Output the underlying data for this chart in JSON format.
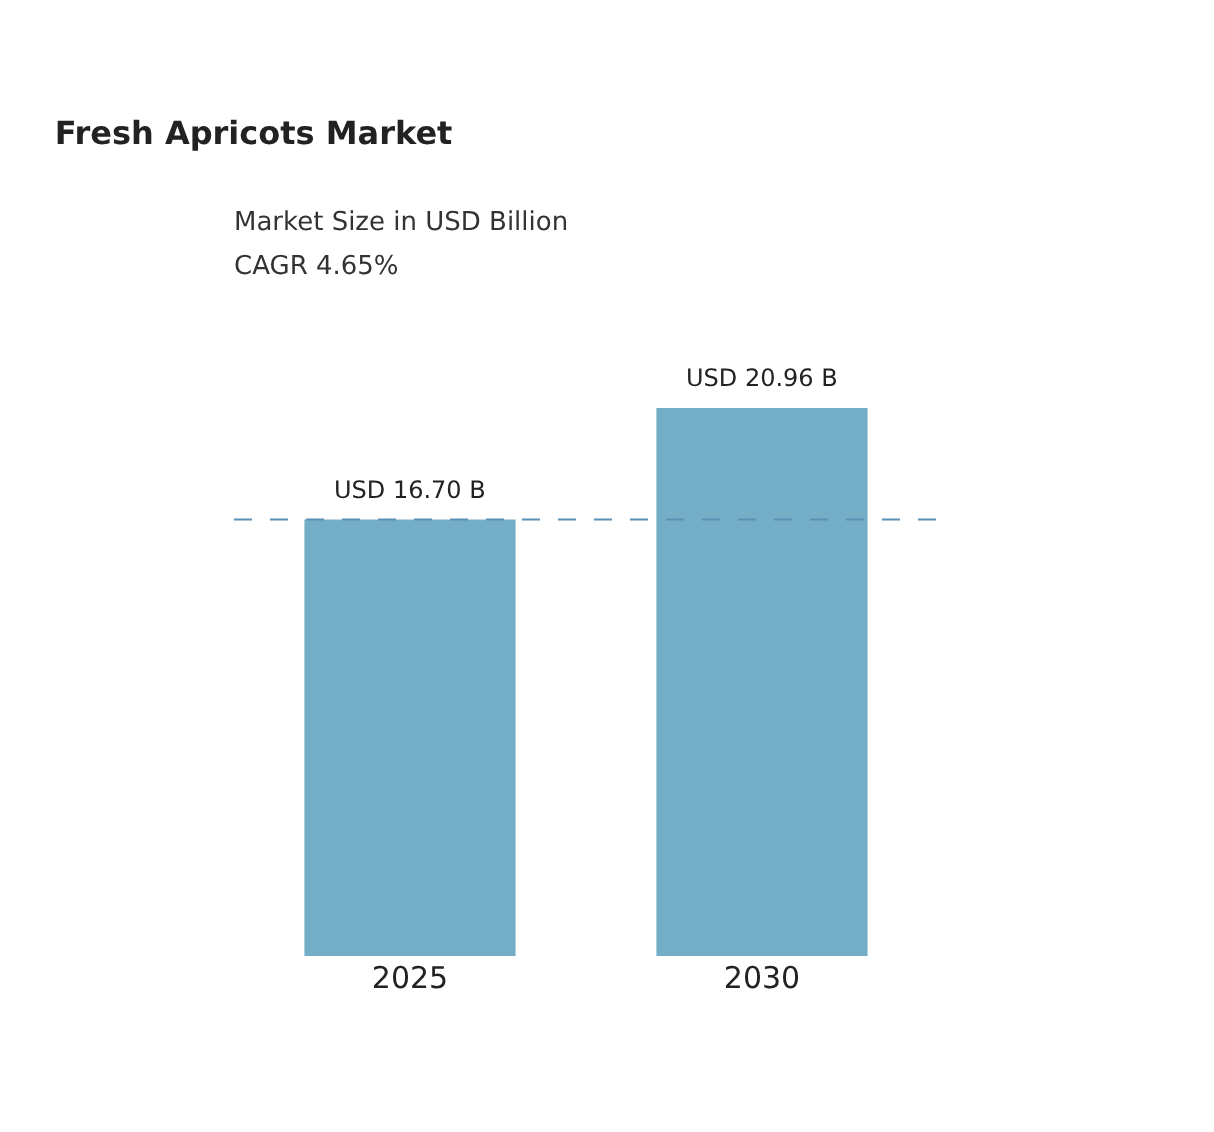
{
  "chart_data": {
    "type": "bar",
    "title": "Fresh Apricots Market",
    "subtitle": "Market Size in USD Billion",
    "annotations": [
      "CAGR 4.65%"
    ],
    "categories": [
      "2025",
      "2030"
    ],
    "values": [
      16.7,
      20.96
    ],
    "color": "#74aec6",
    "value_labels": [
      "USD 16.70 B",
      "USD 20.96 B"
    ],
    "ref_lines": [
      {
        "axis": "y",
        "value": 16.7,
        "label": null,
        "color": "#5b8fb3",
        "line_style": "dashed"
      }
    ],
    "legend": false
  }
}
